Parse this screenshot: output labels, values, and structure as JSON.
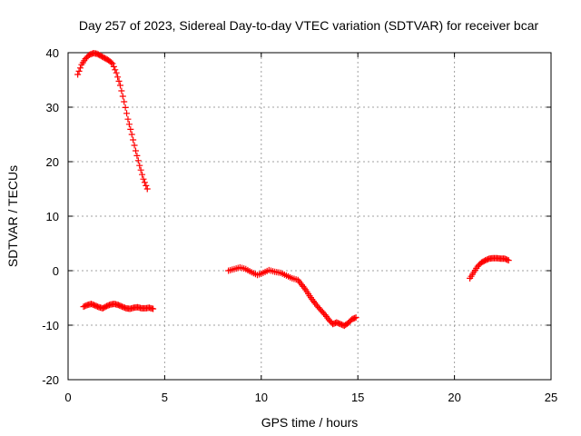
{
  "chart_data": {
    "type": "scatter",
    "title": "Day 257 of 2023, Sidereal Day-to-day VTEC variation (SDTVAR) for receiver bcar",
    "xlabel": "GPS time / hours",
    "ylabel": "SDTVAR / TECUs",
    "xlim": [
      0,
      25
    ],
    "ylim": [
      -20,
      40
    ],
    "xticks": [
      "0",
      "5",
      "10",
      "15",
      "20",
      "25"
    ],
    "yticks": [
      "-20",
      "-10",
      "0",
      "10",
      "20",
      "30",
      "40"
    ],
    "grid": true,
    "marker": "+",
    "color": "#ff0000",
    "series": [
      {
        "name": "segment-1",
        "x": [
          0.5,
          0.7,
          0.9,
          1.1,
          1.3,
          1.5,
          1.7,
          1.9,
          2.1,
          2.3,
          2.5,
          2.7,
          2.9,
          3.1,
          3.3,
          3.5,
          3.7,
          3.9,
          4.1
        ],
        "y": [
          36.0,
          37.8,
          38.9,
          39.6,
          39.9,
          39.8,
          39.4,
          39.0,
          38.6,
          38.0,
          36.3,
          34.0,
          31.0,
          27.8,
          25.0,
          22.0,
          19.3,
          16.8,
          15.0
        ]
      },
      {
        "name": "segment-2",
        "x": [
          0.8,
          1.0,
          1.2,
          1.4,
          1.6,
          1.8,
          2.0,
          2.2,
          2.4,
          2.6,
          2.8,
          3.0,
          3.2,
          3.4,
          3.6,
          3.8,
          4.0,
          4.2,
          4.4
        ],
        "y": [
          -6.6,
          -6.3,
          -6.1,
          -6.4,
          -6.7,
          -6.9,
          -6.5,
          -6.2,
          -6.1,
          -6.3,
          -6.6,
          -6.9,
          -7.0,
          -6.8,
          -6.7,
          -6.9,
          -6.9,
          -6.8,
          -7.0
        ]
      },
      {
        "name": "segment-3",
        "x": [
          8.3,
          8.6,
          8.9,
          9.2,
          9.5,
          9.8,
          10.1,
          10.4,
          10.7,
          11.0,
          11.3,
          11.6,
          11.9,
          12.1,
          12.3,
          12.5,
          12.7,
          12.9,
          13.1,
          13.3,
          13.5,
          13.7,
          13.9,
          14.1,
          14.3,
          14.5,
          14.7,
          14.9
        ],
        "y": [
          0.0,
          0.3,
          0.6,
          0.3,
          -0.3,
          -0.8,
          -0.4,
          0.1,
          -0.2,
          -0.4,
          -0.9,
          -1.4,
          -1.7,
          -2.6,
          -3.5,
          -4.6,
          -5.6,
          -6.5,
          -7.3,
          -8.1,
          -9.0,
          -9.8,
          -9.5,
          -9.8,
          -10.1,
          -9.6,
          -8.9,
          -8.6
        ]
      },
      {
        "name": "segment-4",
        "x": [
          20.8,
          21.0,
          21.2,
          21.4,
          21.6,
          21.8,
          22.0,
          22.2,
          22.4,
          22.6,
          22.8
        ],
        "y": [
          -1.4,
          -0.3,
          0.8,
          1.5,
          1.9,
          2.2,
          2.3,
          2.3,
          2.2,
          2.2,
          1.9
        ]
      }
    ]
  }
}
